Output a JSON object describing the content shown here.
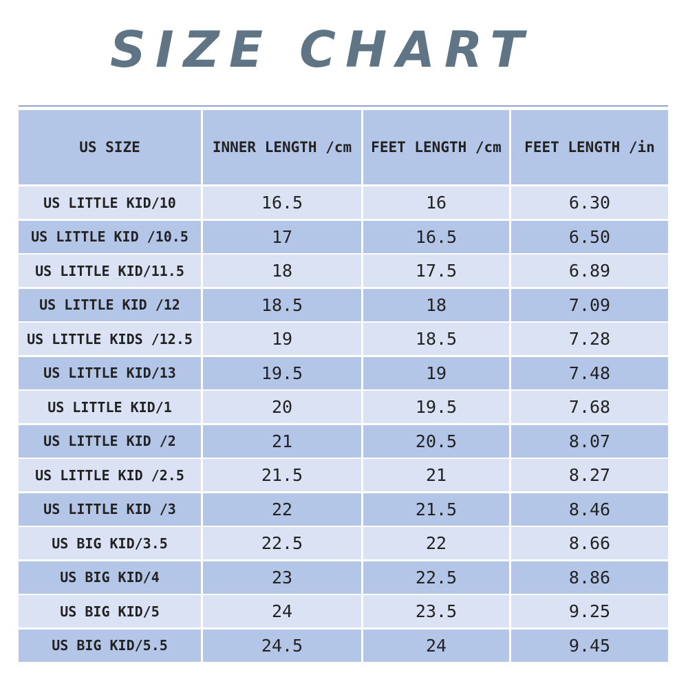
{
  "header": {
    "title": "SIZE CHART"
  },
  "table": {
    "columns": [
      "US SIZE",
      "INNER LENGTH /cm",
      "FEET LENGTH /cm",
      "FEET LENGTH /in"
    ],
    "rows": [
      [
        "US LITTLE KID/10",
        "16.5",
        "16",
        "6.30"
      ],
      [
        "US LITTLE KID /10.5",
        "17",
        "16.5",
        "6.50"
      ],
      [
        "US LITTLE KID/11.5",
        "18",
        "17.5",
        "6.89"
      ],
      [
        "US LITTLE KID /12",
        "18.5",
        "18",
        "7.09"
      ],
      [
        "US LITTLE KIDS /12.5",
        "19",
        "18.5",
        "7.28"
      ],
      [
        "US LITTLE KID/13",
        "19.5",
        "19",
        "7.48"
      ],
      [
        "US LITTLE KID/1",
        "20",
        "19.5",
        "7.68"
      ],
      [
        "US LITTLE KID /2",
        "21",
        "20.5",
        "8.07"
      ],
      [
        "US LITTLE KID /2.5",
        "21.5",
        "21",
        "8.27"
      ],
      [
        "US LITTLE KID /3",
        "22",
        "21.5",
        "8.46"
      ],
      [
        "US BIG KID/3.5",
        "22.5",
        "22",
        "8.66"
      ],
      [
        "US BIG KID/4",
        "23",
        "22.5",
        "8.86"
      ],
      [
        "US BIG KID/5",
        "24",
        "23.5",
        "9.25"
      ],
      [
        "US BIG KID/5.5",
        "24.5",
        "24",
        "9.45"
      ]
    ]
  }
}
